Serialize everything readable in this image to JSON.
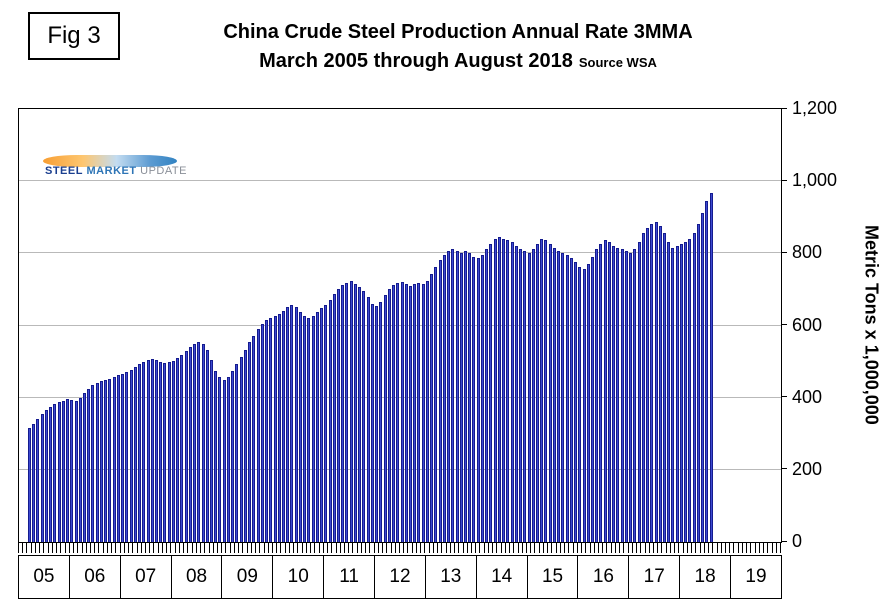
{
  "figure_label": "Fig 3",
  "title_line1": "China Crude Steel Production Annual Rate 3MMA",
  "title_line2": "March 2005 through August 2018",
  "source": "Source WSA",
  "logo": {
    "steel": "STEEL",
    "market": "MARKET",
    "update": "UPDATE"
  },
  "y_axis_title": "Metric Tons x 1,000,000",
  "colors": {
    "bar_fill": "#3d49d0",
    "bar_edge": "#141b8f",
    "gridline": "#b9b9b9"
  },
  "chart_data": {
    "type": "bar",
    "title": "China Crude Steel Production Annual Rate 3MMA",
    "subtitle": "March 2005 through August 2018",
    "source": "Source WSA",
    "ylabel": "Metric Tons x 1,000,000",
    "ylim": [
      0,
      1200
    ],
    "y_ticks": [
      0,
      200,
      400,
      600,
      800,
      1000,
      1200
    ],
    "y_tick_labels": [
      "0",
      "200",
      "400",
      "600",
      "800",
      "1,000",
      "1,200"
    ],
    "x_tick_labels": [
      "05",
      "06",
      "07",
      "08",
      "09",
      "10",
      "11",
      "12",
      "13",
      "14",
      "15",
      "16",
      "17",
      "18",
      "19"
    ],
    "x_axis_start": "2005-01",
    "x_axis_end": "2019-12",
    "months_total": 180,
    "series_start": "2005-03",
    "series_end": "2018-08",
    "start_offset": 2,
    "grid": true,
    "legend": false,
    "values": [
      315,
      328,
      342,
      355,
      366,
      375,
      382,
      388,
      392,
      396,
      394,
      390,
      398,
      412,
      424,
      434,
      441,
      446,
      448,
      452,
      457,
      462,
      466,
      471,
      477,
      484,
      492,
      499,
      505,
      508,
      504,
      498,
      495,
      499,
      503,
      509,
      518,
      528,
      540,
      549,
      554,
      548,
      532,
      505,
      474,
      456,
      448,
      458,
      474,
      492,
      512,
      533,
      553,
      572,
      590,
      605,
      616,
      622,
      627,
      632,
      641,
      650,
      656,
      651,
      638,
      626,
      621,
      627,
      637,
      648,
      658,
      672,
      688,
      702,
      712,
      718,
      722,
      716,
      708,
      697,
      678,
      660,
      655,
      666,
      684,
      700,
      711,
      717,
      721,
      715,
      709,
      714,
      719,
      716,
      722,
      742,
      762,
      781,
      796,
      806,
      811,
      806,
      801,
      806,
      801,
      791,
      786,
      796,
      811,
      826,
      841,
      846,
      841,
      836,
      831,
      821,
      811,
      806,
      801,
      811,
      826,
      841,
      836,
      826,
      816,
      806,
      801,
      796,
      786,
      776,
      761,
      756,
      771,
      791,
      811,
      826,
      836,
      831,
      821,
      816,
      811,
      806,
      801,
      811,
      831,
      856,
      871,
      881,
      886,
      876,
      856,
      831,
      816,
      821,
      826,
      831,
      841,
      856,
      881,
      911,
      946,
      966
    ]
  }
}
